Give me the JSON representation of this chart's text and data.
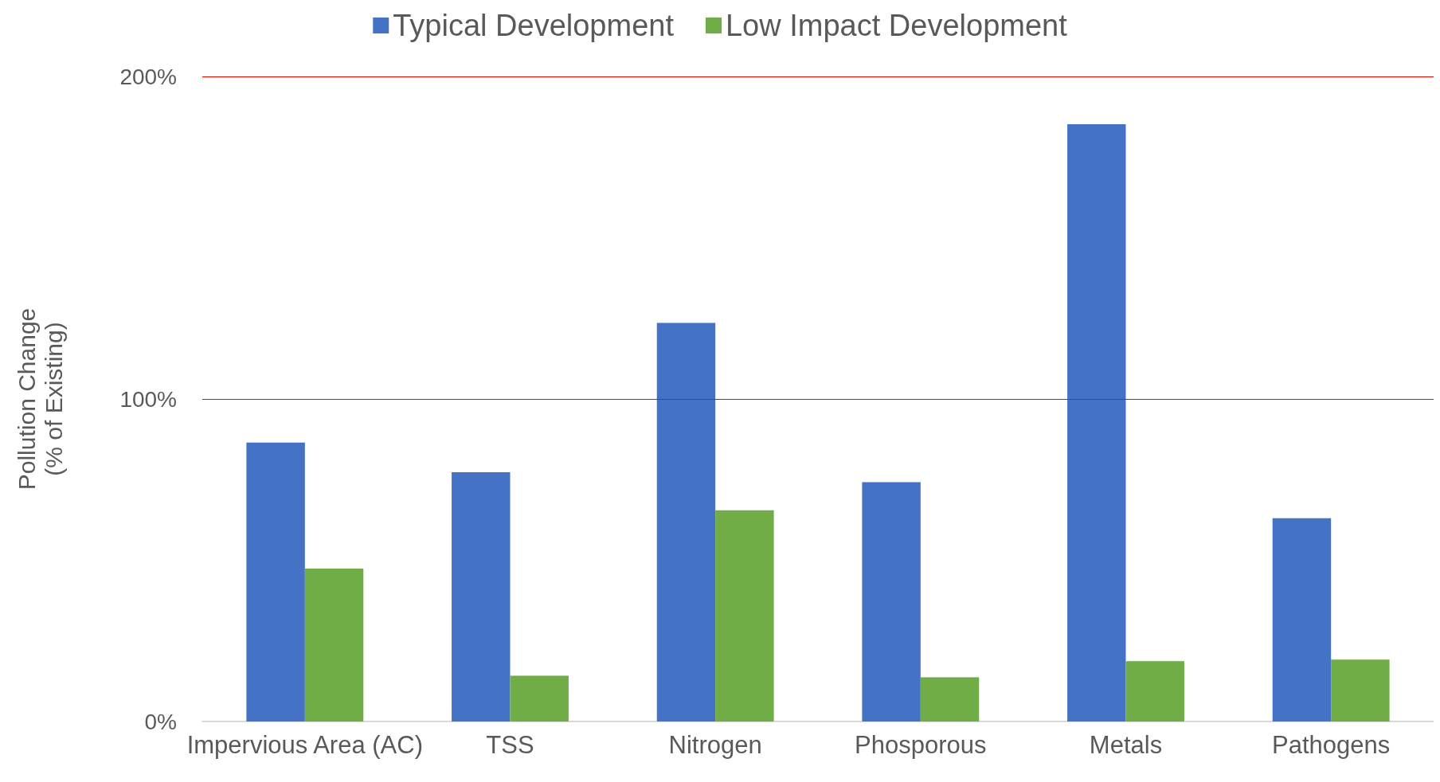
{
  "chart_data": {
    "type": "bar",
    "ylabel": "Pollution Change\n(% of Existing)",
    "categories": [
      "Impervious Area (AC)",
      "TSS",
      "Nitrogen",
      "Phosporous",
      "Metals",
      "Pathogens"
    ],
    "series": [
      {
        "name": "Typical Development",
        "color": "#4472c4",
        "values": [
          86.5,
          77.3,
          123.6,
          74.2,
          185.2,
          63.0
        ]
      },
      {
        "name": "Low Impact Development",
        "color": "#70ad47",
        "values": [
          47.4,
          14.2,
          65.5,
          13.7,
          18.7,
          19.2
        ]
      }
    ],
    "ylim": [
      0,
      200
    ],
    "yticks": [
      {
        "value": 0,
        "label": "0%"
      },
      {
        "value": 100,
        "label": "100%"
      },
      {
        "value": 200,
        "label": "200%"
      }
    ],
    "ref_lines": [
      {
        "axis": "y",
        "value": 100,
        "color": "#ff0000"
      },
      {
        "axis": "y",
        "value": 200,
        "color": "#ff0000"
      }
    ],
    "legend": "top"
  }
}
